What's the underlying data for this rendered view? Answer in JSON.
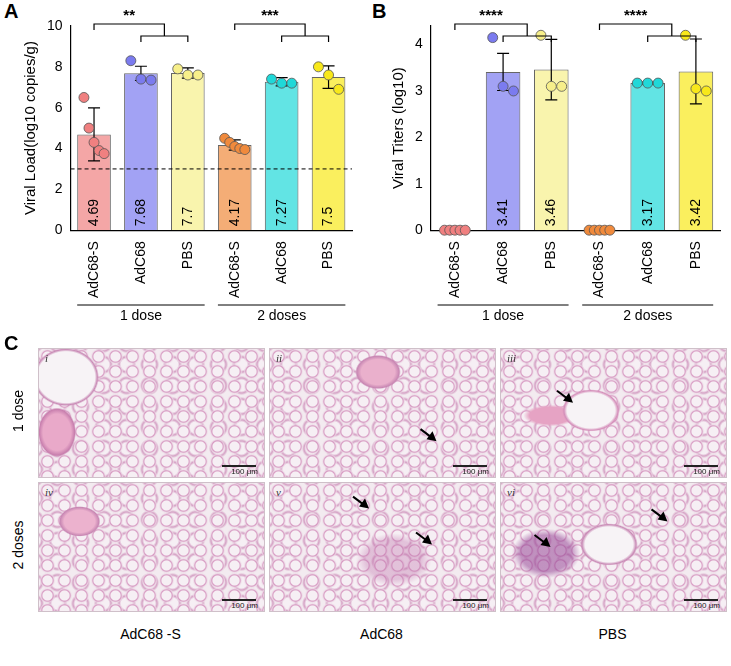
{
  "chart_data": [
    {
      "type": "bar",
      "panel_label": "A",
      "ylabel": "Viral Load(log10 copies/g)",
      "categories": [
        "AdC68-S",
        "AdC68",
        "PBS",
        "AdC68-S",
        "AdC68",
        "PBS"
      ],
      "values": [
        4.69,
        7.68,
        7.7,
        4.17,
        7.27,
        7.5
      ],
      "errors": [
        1.3,
        0.35,
        0.25,
        0.25,
        0.2,
        0.55
      ],
      "points": [
        [
          6.5,
          5.0,
          4.3,
          3.9,
          3.75
        ],
        [
          8.3,
          7.4,
          7.35
        ],
        [
          7.9,
          7.6,
          7.6
        ],
        [
          4.5,
          4.3,
          4.1,
          4.0,
          3.95
        ],
        [
          7.4,
          7.2,
          7.2
        ],
        [
          8.0,
          7.6,
          6.9
        ]
      ],
      "colors": [
        "#f08080",
        "#7b7bef",
        "#f7ef8a",
        "#f08a3c",
        "#20d8d8",
        "#f8e81a"
      ],
      "ylim": [
        0,
        10
      ],
      "yticks": [
        0,
        2,
        4,
        6,
        8,
        10
      ],
      "threshold": 3,
      "data_labels": true,
      "grid": false,
      "groups": [
        {
          "label": "1 dose",
          "from": 0,
          "to": 2
        },
        {
          "label": "2 doses",
          "from": 3,
          "to": 5
        }
      ],
      "significance": [
        {
          "label": "**",
          "from": 0,
          "to": [
            1,
            2
          ]
        },
        {
          "label": "***",
          "from": 3,
          "to": [
            4,
            5
          ]
        }
      ]
    },
    {
      "type": "bar",
      "panel_label": "B",
      "ylabel": "Viral Titers (log10)",
      "categories": [
        "AdC68-S",
        "AdC68",
        "PBS",
        "AdC68-S",
        "AdC68",
        "PBS"
      ],
      "values": [
        0,
        3.41,
        3.46,
        0,
        3.17,
        3.42
      ],
      "value_labels": [
        null,
        "3.41",
        "3.46",
        null,
        "3.17",
        "3.42"
      ],
      "errors": [
        0,
        0.4,
        0.65,
        0,
        0.02,
        0.7
      ],
      "points": [
        [
          0,
          0,
          0,
          0,
          0
        ],
        [
          4.15,
          3.1,
          3.0
        ],
        [
          4.2,
          3.1,
          3.1
        ],
        [
          0,
          0,
          0,
          0,
          0
        ],
        [
          3.17,
          3.17,
          3.17
        ],
        [
          4.2,
          3.05,
          3.0
        ]
      ],
      "colors": [
        "#f08080",
        "#7b7bef",
        "#f7ef8a",
        "#f08a3c",
        "#20d8d8",
        "#f8e81a"
      ],
      "ylim": [
        0,
        4.4
      ],
      "yticks": [
        0,
        1,
        2,
        3,
        4
      ],
      "data_labels": true,
      "grid": false,
      "groups": [
        {
          "label": "1 dose",
          "from": 0,
          "to": 2
        },
        {
          "label": "2 doses",
          "from": 3,
          "to": 5
        }
      ],
      "significance": [
        {
          "label": "****",
          "from": 0,
          "to": [
            1,
            2
          ]
        },
        {
          "label": "****",
          "from": 3,
          "to": [
            4,
            5
          ]
        }
      ]
    }
  ],
  "micrographs": {
    "panel_label": "C",
    "rows": [
      "1 dose",
      "2 doses"
    ],
    "columns": [
      "AdC68 -S",
      "AdC68",
      "PBS"
    ],
    "panels": [
      "i",
      "ii",
      "iii",
      "iv",
      "v",
      "vi"
    ],
    "scale_bar": "100 μm"
  }
}
